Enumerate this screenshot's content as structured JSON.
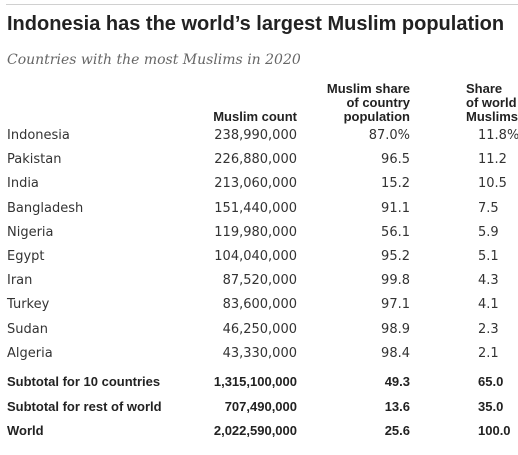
{
  "title": "Indonesia has the world’s largest Muslim population",
  "subtitle": "Countries with the most Muslims in 2020",
  "chart_data": {
    "type": "table",
    "columns": [
      "",
      "Muslim count",
      "Muslim share\nof country\npopulation",
      "Share\nof world\nMuslims"
    ],
    "rows": [
      [
        "Indonesia",
        "238,990,000",
        "87.0%",
        "11.8%"
      ],
      [
        "Pakistan",
        "226,880,000",
        "96.5",
        "11.2"
      ],
      [
        "India",
        "213,060,000",
        "15.2",
        "10.5"
      ],
      [
        "Bangladesh",
        "151,440,000",
        "91.1",
        "7.5"
      ],
      [
        "Nigeria",
        "119,980,000",
        "56.1",
        "5.9"
      ],
      [
        "Egypt",
        "104,040,000",
        "95.2",
        "5.1"
      ],
      [
        "Iran",
        "87,520,000",
        "99.8",
        "4.3"
      ],
      [
        "Turkey",
        "83,600,000",
        "97.1",
        "4.1"
      ],
      [
        "Sudan",
        "46,250,000",
        "98.9",
        "2.3"
      ],
      [
        "Algeria",
        "43,330,000",
        "98.4",
        "2.1"
      ]
    ],
    "subtotals": [
      [
        "Subtotal for 10 countries",
        "1,315,100,000",
        "49.3",
        "65.0"
      ],
      [
        "Subtotal for rest of world",
        "707,490,000",
        "13.6",
        "35.0"
      ],
      [
        "World",
        "2,022,590,000",
        "25.6",
        "100.0"
      ]
    ]
  }
}
